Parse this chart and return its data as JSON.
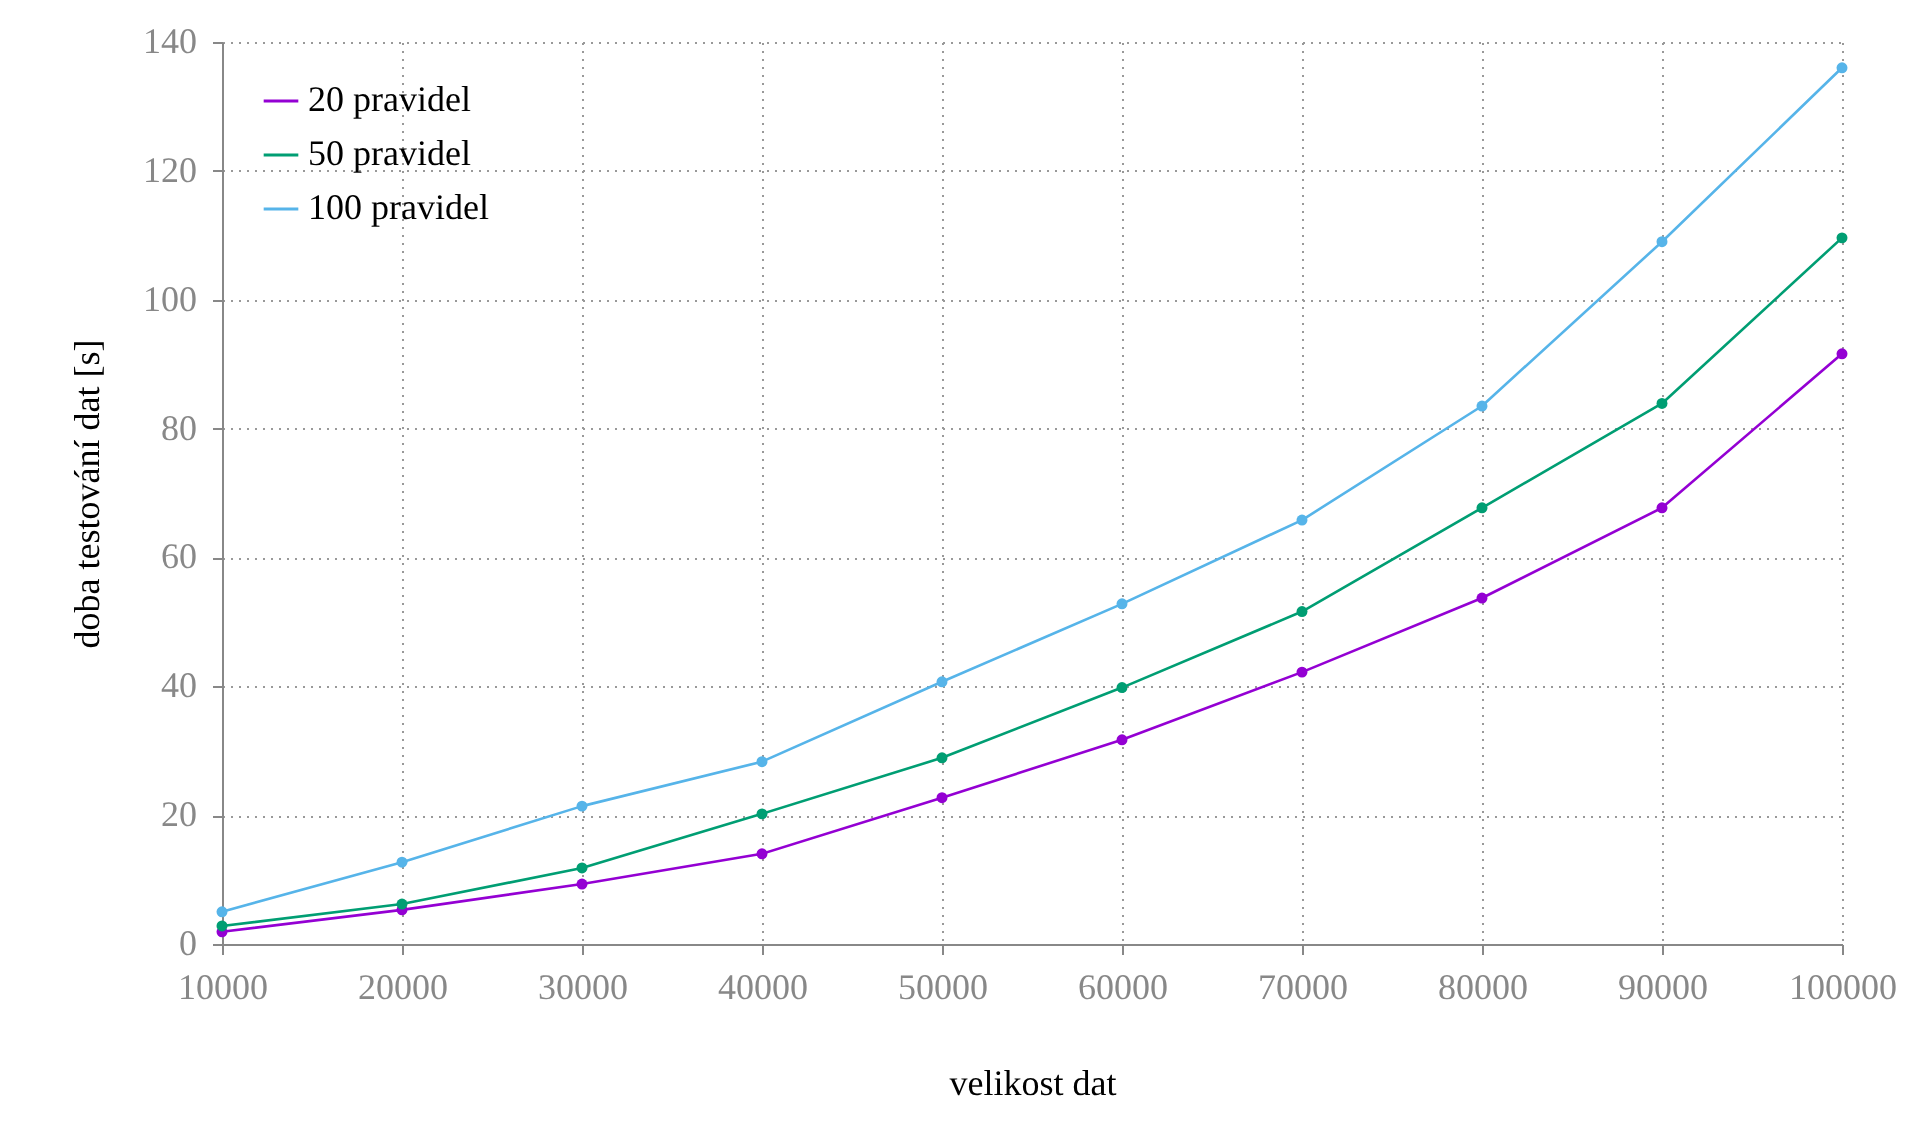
{
  "chart_data": {
    "type": "line",
    "xlabel": "velikost dat",
    "ylabel": "doba testování dat [s]",
    "x": [
      10000,
      20000,
      30000,
      40000,
      50000,
      60000,
      70000,
      80000,
      90000,
      100000
    ],
    "series": [
      {
        "name": "20 pravidel",
        "color": "#9400d3",
        "values": [
          1.9,
          5.3,
          9.3,
          14,
          22.7,
          31.7,
          42.2,
          53.7,
          67.7,
          91.6
        ]
      },
      {
        "name": "50 pravidel",
        "color": "#009e73",
        "values": [
          2.8,
          6.2,
          11.8,
          20.2,
          28.9,
          39.8,
          51.6,
          67.7,
          83.9,
          109.6
        ]
      },
      {
        "name": "100 pravidel",
        "color": "#56b4e9",
        "values": [
          5,
          12.7,
          21.4,
          28.3,
          40.7,
          52.8,
          65.8,
          83.5,
          109,
          136
        ]
      }
    ],
    "xlim": [
      10000,
      100000
    ],
    "xticks": [
      10000,
      20000,
      30000,
      40000,
      50000,
      60000,
      70000,
      80000,
      90000,
      100000
    ],
    "ylim": [
      0,
      140
    ],
    "yticks": [
      0,
      20,
      40,
      60,
      80,
      100,
      120,
      140
    ],
    "grid": true,
    "legend": "top left",
    "marker": "circle",
    "line_style": "solid"
  }
}
